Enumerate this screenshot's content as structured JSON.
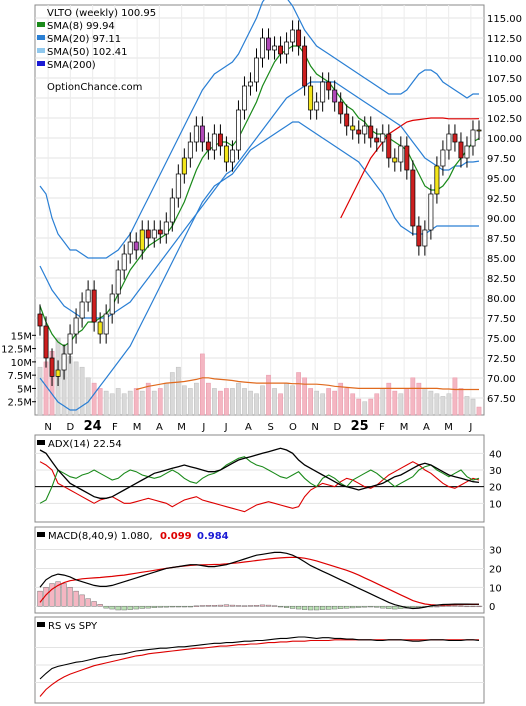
{
  "chart_data": [
    {
      "type": "candlestick",
      "panel": "price",
      "title": "VLTO (weekly) 100.95",
      "legend": [
        {
          "label": "SMA(8) 99.94",
          "color": "#1a8a1a"
        },
        {
          "label": "SMA(20) 97.11",
          "color": "#2a7fd4"
        },
        {
          "label": "SMA(50) 102.41",
          "color": "#8fc8ee"
        },
        {
          "label": "SMA(200)",
          "color": "#1a1ad4"
        }
      ],
      "watermark": "OptionChance.com",
      "ylim": [
        66,
        116
      ],
      "y_ticks": [
        "115.00",
        "112.50",
        "110.00",
        "107.50",
        "105.00",
        "102.50",
        "100.00",
        "97.50",
        "95.00",
        "92.50",
        "90.00",
        "87.50",
        "85.00",
        "82.50",
        "80.00",
        "77.50",
        "75.00",
        "72.50",
        "70.00",
        "67.50"
      ],
      "x_ticks": [
        "N",
        "D",
        "24",
        "F",
        "M",
        "A",
        "M",
        "J",
        "J",
        "A",
        "S",
        "O",
        "N",
        "D",
        "25",
        "F",
        "M",
        "A",
        "M",
        "J"
      ],
      "closes": [
        76.5,
        72.5,
        70.2,
        71.0,
        73.0,
        75.5,
        77.5,
        79.5,
        81.0,
        77.0,
        75.5,
        78.0,
        80.5,
        83.5,
        85.5,
        87.0,
        86.0,
        88.5,
        87.5,
        88.5,
        88.0,
        89.5,
        92.5,
        95.5,
        97.5,
        99.5,
        101.5,
        99.5,
        98.5,
        100.5,
        99.0,
        97.0,
        98.5,
        103.5,
        106.5,
        107.0,
        110.0,
        112.5,
        111.0,
        111.5,
        110.5,
        112.0,
        113.5,
        111.5,
        106.5,
        103.5,
        104.5,
        107.0,
        106.0,
        104.5,
        103.0,
        101.5,
        101.0,
        100.5,
        101.5,
        100.0,
        99.5,
        100.5,
        97.5,
        97.0,
        99.0,
        96.0,
        89.0,
        86.5,
        88.5,
        93.0,
        96.5,
        98.5,
        100.5,
        99.5,
        97.5,
        99.0,
        101.0,
        100.95
      ],
      "sma8": [
        79,
        77,
        75.5,
        74.5,
        74,
        74.5,
        75.5,
        76,
        77,
        77,
        77.5,
        78,
        79,
        80.5,
        82,
        83.5,
        84.5,
        85.5,
        86.5,
        87,
        87.5,
        88,
        89,
        90.5,
        92,
        94,
        96,
        97.5,
        98.5,
        99,
        99.5,
        99.5,
        99,
        100,
        101.5,
        103,
        104.5,
        106.5,
        108,
        109.5,
        110.5,
        111,
        111.5,
        111.5,
        110.5,
        109,
        108,
        107.5,
        107,
        106,
        105,
        104,
        103.5,
        102.5,
        102,
        101,
        100.5,
        100.5,
        100,
        99.5,
        99,
        98.5,
        97,
        95.5,
        94,
        93.5,
        93.5,
        94,
        95,
        96.5,
        97.5,
        98.5,
        99.5,
        99.94
      ],
      "sma20": [
        84,
        82.5,
        81,
        80,
        79,
        78.5,
        78,
        77.5,
        77.5,
        77.5,
        77.5,
        77.5,
        78,
        78.5,
        79,
        79.5,
        80.5,
        81.5,
        82.5,
        83.5,
        84.5,
        85.5,
        86.5,
        87.5,
        88.5,
        89.5,
        90.5,
        91.5,
        92.5,
        93.5,
        94.5,
        95.5,
        96,
        97,
        98,
        99,
        100,
        101,
        102,
        103,
        104,
        105,
        105.5,
        106,
        106.5,
        107,
        107,
        107,
        107,
        107,
        106.5,
        106,
        105.5,
        105,
        104.5,
        104,
        103.5,
        103,
        102.5,
        102,
        101.5,
        100.5,
        99.5,
        98.5,
        97.5,
        97,
        96.5,
        96,
        96,
        96.5,
        96.5,
        97,
        97,
        97.11
      ],
      "sma50": [
        null,
        null,
        null,
        null,
        null,
        null,
        null,
        null,
        null,
        null,
        null,
        null,
        null,
        null,
        null,
        null,
        null,
        null,
        null,
        null,
        null,
        null,
        null,
        null,
        null,
        null,
        null,
        null,
        null,
        null,
        null,
        null,
        null,
        null,
        null,
        null,
        null,
        null,
        null,
        null,
        null,
        null,
        null,
        null,
        null,
        null,
        null,
        null,
        null,
        null,
        90,
        91.5,
        93,
        94.5,
        96,
        97.5,
        98.5,
        99.5,
        100.5,
        101,
        101.5,
        102,
        102.2,
        102.3,
        102.4,
        102.5,
        102.5,
        102.5,
        102.4,
        102.4,
        102.4,
        102.4,
        102.4,
        102.41
      ],
      "bb_upper": [
        94,
        93,
        90,
        88,
        87,
        86,
        86,
        85.5,
        85,
        85,
        85,
        85,
        85.5,
        86,
        87,
        88,
        89.5,
        91,
        92.5,
        94,
        95.5,
        97,
        98.5,
        100,
        101.5,
        103,
        104.5,
        106,
        107,
        108,
        108.5,
        109,
        109.5,
        110.5,
        112,
        113.5,
        115,
        117,
        118,
        118.5,
        118,
        117.5,
        116.5,
        115,
        113.5,
        112.5,
        111.5,
        111,
        110.5,
        110,
        109.5,
        109,
        108.5,
        108,
        107.5,
        107,
        106.5,
        106,
        105.5,
        105.5,
        105.5,
        106,
        107,
        108,
        108.5,
        108.5,
        108,
        107,
        106.5,
        106,
        105.5,
        105,
        105.5,
        105.5
      ],
      "bb_lower": [
        70,
        69,
        68,
        67,
        66.5,
        66,
        66,
        66.5,
        67,
        68,
        69,
        70,
        71,
        72,
        73,
        74,
        75.5,
        77,
        78.5,
        80,
        81.5,
        83,
        84.5,
        86,
        87.5,
        89,
        90.5,
        92,
        93,
        94,
        94.5,
        95,
        95.5,
        96.5,
        97.5,
        98.5,
        99,
        99.5,
        100,
        100.5,
        101,
        101.5,
        102,
        102,
        101.5,
        101,
        100.5,
        100,
        99.5,
        99,
        98.5,
        98,
        97.5,
        97,
        96,
        95,
        94,
        93,
        91.5,
        90,
        89,
        88.5,
        88,
        88,
        88,
        88.5,
        89,
        89,
        89,
        89,
        89,
        89,
        89,
        89
      ],
      "buy_marks": [
        3,
        62
      ],
      "sell_marks": []
    },
    {
      "type": "bar",
      "panel": "volume",
      "y_ticks": [
        "15M",
        "12.5M",
        "10M",
        "7.5M",
        "5M",
        "2.5M"
      ],
      "ylim": [
        0,
        16
      ],
      "values": [
        9,
        10,
        12,
        14.5,
        13,
        11,
        10,
        9,
        7,
        6,
        5,
        4.5,
        4,
        5,
        4,
        4.5,
        5,
        4.5,
        6,
        4.5,
        5,
        6,
        8,
        9,
        5.5,
        5,
        6,
        11.5,
        6,
        5,
        4.5,
        5,
        5,
        6,
        5,
        4.5,
        4,
        5.5,
        7.5,
        5,
        4,
        6,
        5.5,
        8,
        7,
        5,
        4.5,
        4,
        5,
        4.5,
        6,
        5,
        4,
        3,
        2.5,
        3,
        4,
        5,
        6,
        4.5,
        4,
        5,
        7,
        6,
        5,
        4.5,
        4,
        3.5,
        4,
        7,
        5,
        3.5,
        3,
        1.5
      ],
      "ma_values": [
        null,
        null,
        null,
        null,
        null,
        null,
        null,
        null,
        null,
        null,
        null,
        null,
        null,
        null,
        null,
        null,
        4.8,
        5.1,
        5.4,
        5.6,
        5.8,
        6.0,
        6.1,
        6.2,
        6.3,
        6.5,
        6.7,
        7.0,
        7.0,
        6.8,
        6.7,
        6.6,
        6.5,
        6.3,
        6.2,
        6.1,
        6.0,
        6.0,
        6.0,
        6.0,
        6.0,
        6.0,
        5.9,
        5.9,
        5.8,
        5.8,
        5.8,
        5.7,
        5.6,
        5.4,
        5.3,
        5.2,
        5.1,
        5.0,
        5.0,
        5.0,
        5.0,
        5.0,
        5.0,
        5.0,
        5.0,
        5.0,
        5.0,
        5.0,
        5.0,
        5.0,
        5.0,
        4.9,
        4.9,
        4.8,
        4.8,
        4.8,
        4.8,
        4.8
      ]
    },
    {
      "type": "line",
      "panel": "adx",
      "title": "ADX(14) 22.54",
      "y_ticks": [
        "40",
        "30",
        "20",
        "10"
      ],
      "ylim": [
        0,
        48
      ],
      "reference_line": 20,
      "adx": [
        42,
        40,
        35,
        30,
        26,
        22,
        20,
        18,
        16,
        14,
        13,
        13,
        14,
        16,
        18,
        20,
        22,
        24,
        26,
        28,
        29,
        30,
        31,
        32,
        33,
        32,
        31,
        30,
        29,
        29,
        30,
        32,
        34,
        36,
        37,
        38,
        39,
        40,
        41,
        42,
        43,
        42,
        40,
        36,
        33,
        31,
        29,
        27,
        25,
        23,
        21,
        20,
        19,
        18,
        19,
        20,
        21,
        22,
        24,
        26,
        27,
        29,
        31,
        33,
        34,
        33,
        31,
        29,
        27,
        26,
        25,
        24,
        23,
        22.54
      ],
      "plus_di": [
        10,
        12,
        20,
        30,
        28,
        26,
        25,
        27,
        28,
        30,
        28,
        26,
        24,
        25,
        28,
        30,
        29,
        27,
        26,
        25,
        26,
        28,
        30,
        28,
        25,
        23,
        22,
        25,
        27,
        28,
        30,
        33,
        35,
        37,
        38,
        35,
        33,
        32,
        30,
        28,
        26,
        25,
        27,
        29,
        25,
        22,
        20,
        25,
        27,
        25,
        22,
        20,
        24,
        26,
        28,
        30,
        28,
        25,
        23,
        20,
        22,
        24,
        26,
        30,
        32,
        33,
        30,
        28,
        26,
        28,
        30,
        26,
        24,
        25
      ],
      "minus_di": [
        35,
        33,
        30,
        22,
        20,
        18,
        16,
        14,
        12,
        10,
        12,
        13,
        14,
        12,
        10,
        10,
        11,
        12,
        13,
        12,
        11,
        10,
        8,
        10,
        12,
        13,
        14,
        12,
        11,
        10,
        9,
        8,
        7,
        6,
        5,
        7,
        9,
        10,
        11,
        10,
        9,
        8,
        7,
        8,
        14,
        18,
        20,
        22,
        21,
        20,
        23,
        25,
        24,
        22,
        20,
        19,
        21,
        24,
        27,
        29,
        31,
        33,
        35,
        33,
        30,
        28,
        25,
        22,
        20,
        19,
        21,
        23,
        25,
        24
      ]
    },
    {
      "type": "line",
      "panel": "macd",
      "title": "MACD(8,40,9) 1.080,",
      "values_shown": [
        "0.099",
        "0.984"
      ],
      "value_colors": [
        "#dd0000",
        "#1a1ad4"
      ],
      "y_ticks": [
        "30",
        "20",
        "10",
        "0"
      ],
      "ylim": [
        -2,
        34
      ],
      "macd": [
        10,
        14,
        16,
        17,
        16.5,
        15.5,
        14,
        13,
        12,
        11,
        10.5,
        10.5,
        11,
        12,
        13,
        14,
        15,
        16,
        17,
        18,
        19,
        20,
        20.5,
        21,
        21.5,
        22,
        22,
        21.5,
        21,
        21,
        21.5,
        22,
        23,
        24,
        25,
        26,
        27,
        27.5,
        28,
        28.5,
        28.5,
        28,
        27,
        25.5,
        23.5,
        21.5,
        20,
        18.5,
        17,
        15.5,
        14,
        12.5,
        11,
        9.5,
        8,
        6.5,
        5,
        3.5,
        2,
        0.8,
        0,
        -0.8,
        -1.2,
        -1,
        -0.5,
        0.2,
        0.6,
        0.9,
        1,
        1.1,
        1.1,
        1.1,
        1.08,
        1.08
      ],
      "signal": [
        2,
        6,
        9,
        11,
        12.5,
        13.5,
        14,
        14.5,
        14.8,
        15,
        15.2,
        15.5,
        15.8,
        16.2,
        16.5,
        17,
        17.5,
        18,
        18.5,
        19,
        19.5,
        20,
        20.5,
        21,
        21.3,
        21.6,
        21.8,
        21.9,
        22,
        22.1,
        22.2,
        22.4,
        22.7,
        23,
        23.4,
        23.8,
        24.2,
        24.6,
        25,
        25.3,
        25.6,
        25.8,
        25.9,
        25.8,
        25.4,
        24.8,
        24,
        23,
        22,
        21,
        20,
        19,
        17.8,
        16.5,
        15,
        13.5,
        12,
        10.5,
        9,
        7.5,
        6,
        4.5,
        3,
        2,
        1.2,
        0.8,
        0.6,
        0.6,
        0.7,
        0.8,
        0.9,
        0.95,
        0.98,
        0.984
      ],
      "histogram": [
        8,
        10,
        12,
        13,
        12,
        10,
        8,
        6,
        4,
        2.5,
        1,
        -1,
        -1.5,
        -2,
        -2,
        -1.8,
        -1.5,
        -1.2,
        -1,
        -0.8,
        -0.6,
        -0.5,
        -0.4,
        -0.3,
        -0.2,
        -0.1,
        0.2,
        0.4,
        0.5,
        0.5,
        0.6,
        0.8,
        0.6,
        0.4,
        0.3,
        0.4,
        0.5,
        0.7,
        0.6,
        0.3,
        -0.3,
        -0.8,
        -1.2,
        -1.5,
        -1.8,
        -2,
        -2,
        -1.8,
        -1.7,
        -1.5,
        -1.3,
        -1.1,
        -0.9,
        -0.7,
        -0.5,
        -0.3,
        -0.6,
        -1,
        -1.3,
        -1.5,
        -1.3,
        -1.1,
        -0.9,
        -0.6,
        -0.4,
        -0.2,
        0,
        0.2,
        0.3,
        0.3,
        0.2,
        0.1,
        0.1,
        0.099
      ]
    },
    {
      "type": "line",
      "panel": "rs",
      "title": "RS vs SPY",
      "rs": [
        30,
        38,
        45,
        48,
        50,
        52,
        54,
        55,
        57,
        59,
        61,
        62,
        64,
        65,
        66,
        68,
        70,
        71,
        72,
        73,
        74,
        74,
        75,
        76,
        76,
        77,
        78,
        79,
        80,
        81,
        81,
        82,
        82,
        83,
        84,
        84,
        85,
        85,
        86,
        87,
        88,
        88,
        89,
        90,
        90,
        89,
        88,
        89,
        89,
        88,
        88,
        87,
        87,
        86,
        86,
        86,
        85,
        85,
        86,
        86,
        86,
        85,
        84,
        84,
        85,
        86,
        86,
        86,
        85,
        85,
        85,
        86,
        86,
        85
      ],
      "rs_ma": [
        5,
        15,
        22,
        28,
        33,
        37,
        40,
        43,
        46,
        49,
        51,
        53,
        55,
        57,
        59,
        61,
        63,
        64,
        66,
        67,
        68,
        69,
        70,
        71,
        72,
        73,
        74,
        74,
        75,
        76,
        77,
        77,
        78,
        79,
        79,
        80,
        80,
        81,
        82,
        82,
        83,
        83,
        84,
        84,
        84,
        85,
        85,
        85,
        85,
        86,
        86,
        86,
        86,
        86,
        86,
        86,
        86,
        86,
        86,
        86,
        86,
        86,
        86,
        86,
        86,
        86,
        86,
        86,
        86,
        86,
        86,
        86,
        86,
        86
      ]
    }
  ]
}
